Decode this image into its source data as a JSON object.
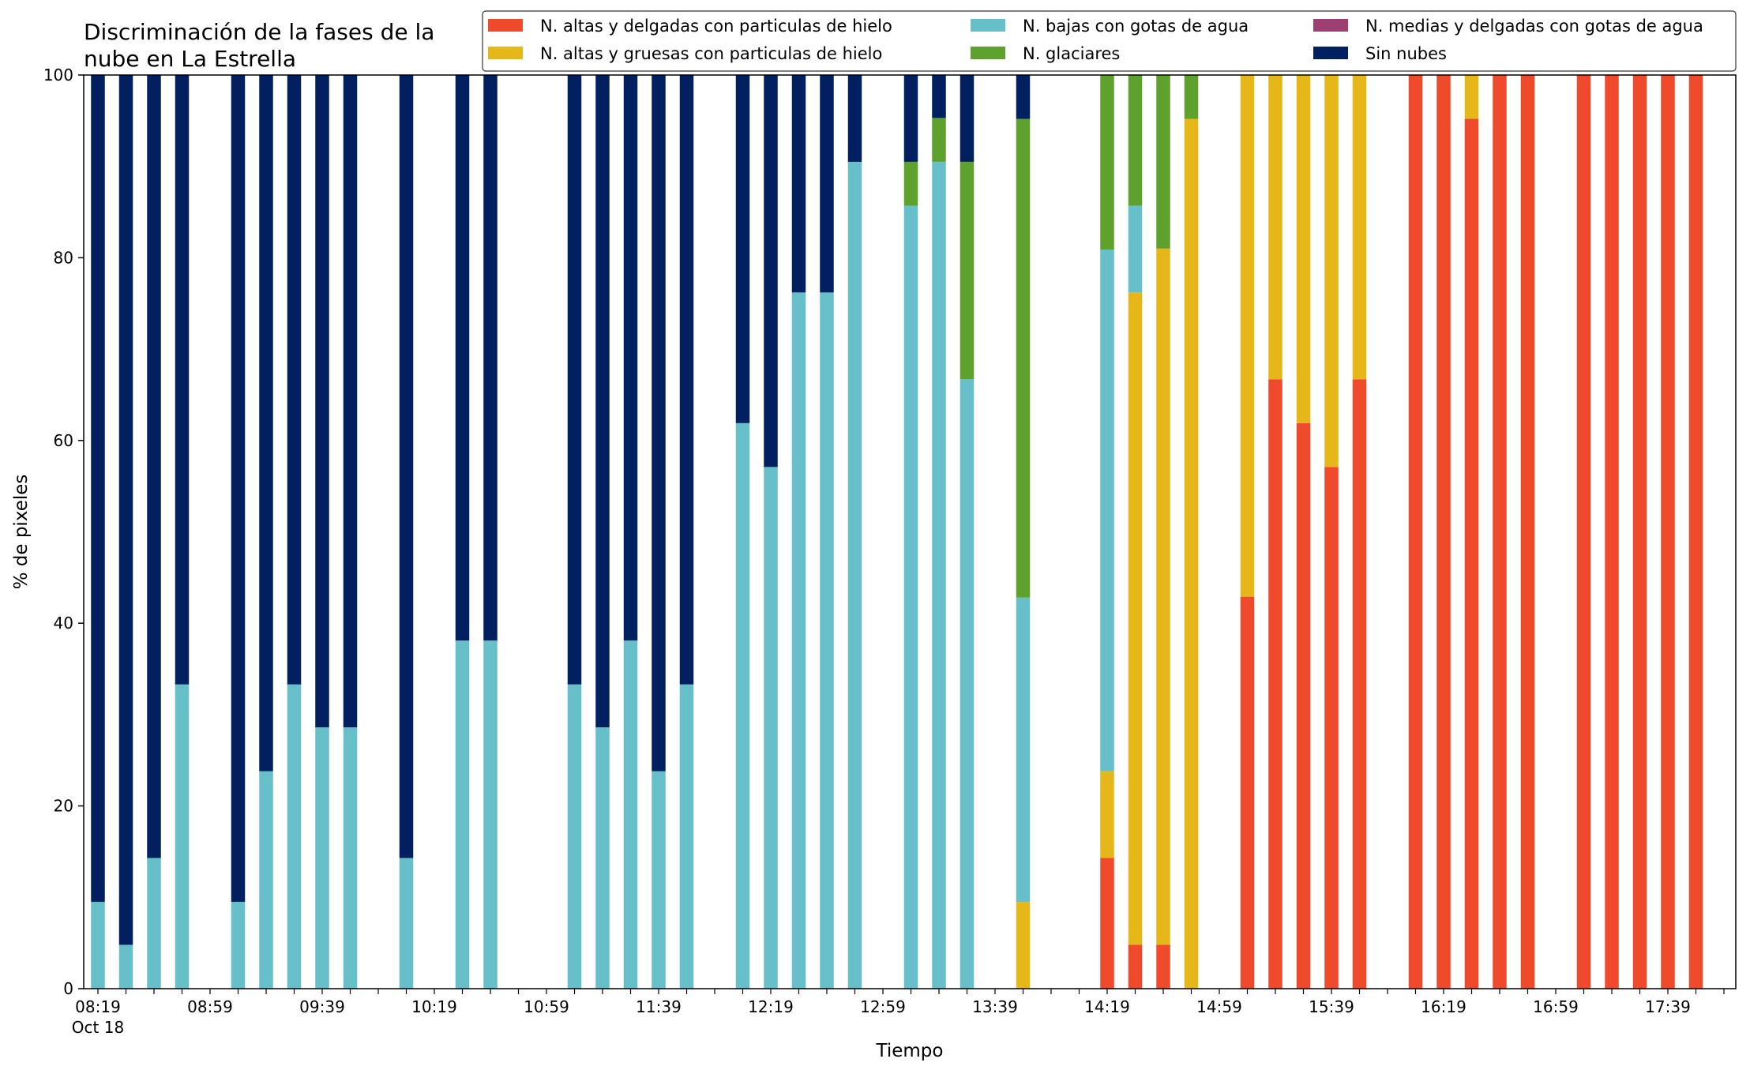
{
  "chart_data": {
    "type": "bar",
    "stacked": true,
    "title_lines": [
      "Discriminación de la fases de la",
      "nube en La Estrella"
    ],
    "xlabel": "Tiempo",
    "ylabel": "% de pixeles",
    "ylim": [
      0,
      100
    ],
    "yticks": [
      0,
      20,
      40,
      60,
      80,
      100
    ],
    "time_start": "08:19",
    "time_end": "17:59",
    "slot_minutes": 10,
    "xtick_labels": [
      "08:19",
      "08:59",
      "09:39",
      "10:19",
      "10:59",
      "11:39",
      "12:19",
      "12:59",
      "13:39",
      "14:19",
      "14:59",
      "15:39",
      "16:19",
      "16:59",
      "17:39"
    ],
    "xtick_date": "Oct 18",
    "grid": false,
    "legend_position": "top-right",
    "series": [
      {
        "name": "N. altas y delgadas con particulas de hielo",
        "color": "#ee4a2b"
      },
      {
        "name": "N. altas y gruesas con particulas de hielo",
        "color": "#e6b718"
      },
      {
        "name": "N. bajas con gotas de agua",
        "color": "#67bfca"
      },
      {
        "name": "N. glaciares",
        "color": "#5fa12d"
      },
      {
        "name": "N. medias y delgadas con gotas de agua",
        "color": "#9e3f74"
      },
      {
        "name": "Sin nubes",
        "color": "#02205f"
      }
    ],
    "bars": [
      {
        "time": "08:19",
        "values": [
          0,
          0,
          9.5,
          0,
          0,
          90.5
        ]
      },
      {
        "time": "08:29",
        "values": [
          0,
          0,
          4.8,
          0,
          0,
          95.2
        ]
      },
      {
        "time": "08:39",
        "values": [
          0,
          0,
          14.3,
          0,
          0,
          85.7
        ]
      },
      {
        "time": "08:49",
        "values": [
          0,
          0,
          33.3,
          0,
          0,
          66.7
        ]
      },
      {
        "time": "09:09",
        "values": [
          0,
          0,
          9.5,
          0,
          0,
          90.5
        ]
      },
      {
        "time": "09:19",
        "values": [
          0,
          0,
          23.8,
          0,
          0,
          76.2
        ]
      },
      {
        "time": "09:29",
        "values": [
          0,
          0,
          33.3,
          0,
          0,
          66.7
        ]
      },
      {
        "time": "09:39",
        "values": [
          0,
          0,
          28.6,
          0,
          0,
          71.4
        ]
      },
      {
        "time": "09:49",
        "values": [
          0,
          0,
          28.6,
          0,
          0,
          71.4
        ]
      },
      {
        "time": "10:09",
        "values": [
          0,
          0,
          14.3,
          0,
          0,
          85.7
        ]
      },
      {
        "time": "10:29",
        "values": [
          0,
          0,
          38.1,
          0,
          0,
          61.9
        ]
      },
      {
        "time": "10:39",
        "values": [
          0,
          0,
          38.1,
          0,
          0,
          61.9
        ]
      },
      {
        "time": "11:09",
        "values": [
          0,
          0,
          33.3,
          0,
          0,
          66.7
        ]
      },
      {
        "time": "11:19",
        "values": [
          0,
          0,
          28.6,
          0,
          0,
          71.4
        ]
      },
      {
        "time": "11:29",
        "values": [
          0,
          0,
          38.1,
          0,
          0,
          61.9
        ]
      },
      {
        "time": "11:39",
        "values": [
          0,
          0,
          23.8,
          0,
          0,
          76.2
        ]
      },
      {
        "time": "11:49",
        "values": [
          0,
          0,
          33.3,
          0,
          0,
          66.7
        ]
      },
      {
        "time": "12:09",
        "values": [
          0,
          0,
          61.9,
          0,
          0,
          38.1
        ]
      },
      {
        "time": "12:19",
        "values": [
          0,
          0,
          57.1,
          0,
          0,
          42.9
        ]
      },
      {
        "time": "12:29",
        "values": [
          0,
          0,
          76.2,
          0,
          0,
          23.8
        ]
      },
      {
        "time": "12:39",
        "values": [
          0,
          0,
          76.2,
          0,
          0,
          23.8
        ]
      },
      {
        "time": "12:49",
        "values": [
          0,
          0,
          90.5,
          0,
          0,
          9.5
        ]
      },
      {
        "time": "13:09",
        "values": [
          0,
          0,
          85.7,
          4.8,
          0,
          9.5
        ]
      },
      {
        "time": "13:19",
        "values": [
          0,
          0,
          90.5,
          4.8,
          0,
          4.7
        ]
      },
      {
        "time": "13:29",
        "values": [
          0,
          0,
          66.7,
          23.8,
          0,
          9.5
        ]
      },
      {
        "time": "13:49",
        "values": [
          0,
          9.5,
          33.3,
          52.4,
          0,
          4.8
        ]
      },
      {
        "time": "14:19",
        "values": [
          14.3,
          9.5,
          57.1,
          19.1,
          0,
          0
        ]
      },
      {
        "time": "14:29",
        "values": [
          4.8,
          71.4,
          9.5,
          14.3,
          0,
          0
        ]
      },
      {
        "time": "14:39",
        "values": [
          4.8,
          76.2,
          0,
          19.0,
          0,
          0
        ]
      },
      {
        "time": "14:49",
        "values": [
          0,
          95.2,
          0,
          4.8,
          0,
          0
        ]
      },
      {
        "time": "15:09",
        "values": [
          42.9,
          57.1,
          0,
          0,
          0,
          0
        ]
      },
      {
        "time": "15:19",
        "values": [
          66.7,
          33.3,
          0,
          0,
          0,
          0
        ]
      },
      {
        "time": "15:29",
        "values": [
          61.9,
          38.1,
          0,
          0,
          0,
          0
        ]
      },
      {
        "time": "15:39",
        "values": [
          57.1,
          42.9,
          0,
          0,
          0,
          0
        ]
      },
      {
        "time": "15:49",
        "values": [
          66.7,
          33.3,
          0,
          0,
          0,
          0
        ]
      },
      {
        "time": "16:09",
        "values": [
          100,
          0,
          0,
          0,
          0,
          0
        ]
      },
      {
        "time": "16:19",
        "values": [
          100,
          0,
          0,
          0,
          0,
          0
        ]
      },
      {
        "time": "16:29",
        "values": [
          95.2,
          4.8,
          0,
          0,
          0,
          0
        ]
      },
      {
        "time": "16:39",
        "values": [
          100,
          0,
          0,
          0,
          0,
          0
        ]
      },
      {
        "time": "16:49",
        "values": [
          100,
          0,
          0,
          0,
          0,
          0
        ]
      },
      {
        "time": "17:09",
        "values": [
          100,
          0,
          0,
          0,
          0,
          0
        ]
      },
      {
        "time": "17:19",
        "values": [
          100,
          0,
          0,
          0,
          0,
          0
        ]
      },
      {
        "time": "17:29",
        "values": [
          100,
          0,
          0,
          0,
          0,
          0
        ]
      },
      {
        "time": "17:39",
        "values": [
          100,
          0,
          0,
          0,
          0,
          0
        ]
      },
      {
        "time": "17:49",
        "values": [
          100,
          0,
          0,
          0,
          0,
          0
        ]
      }
    ]
  }
}
